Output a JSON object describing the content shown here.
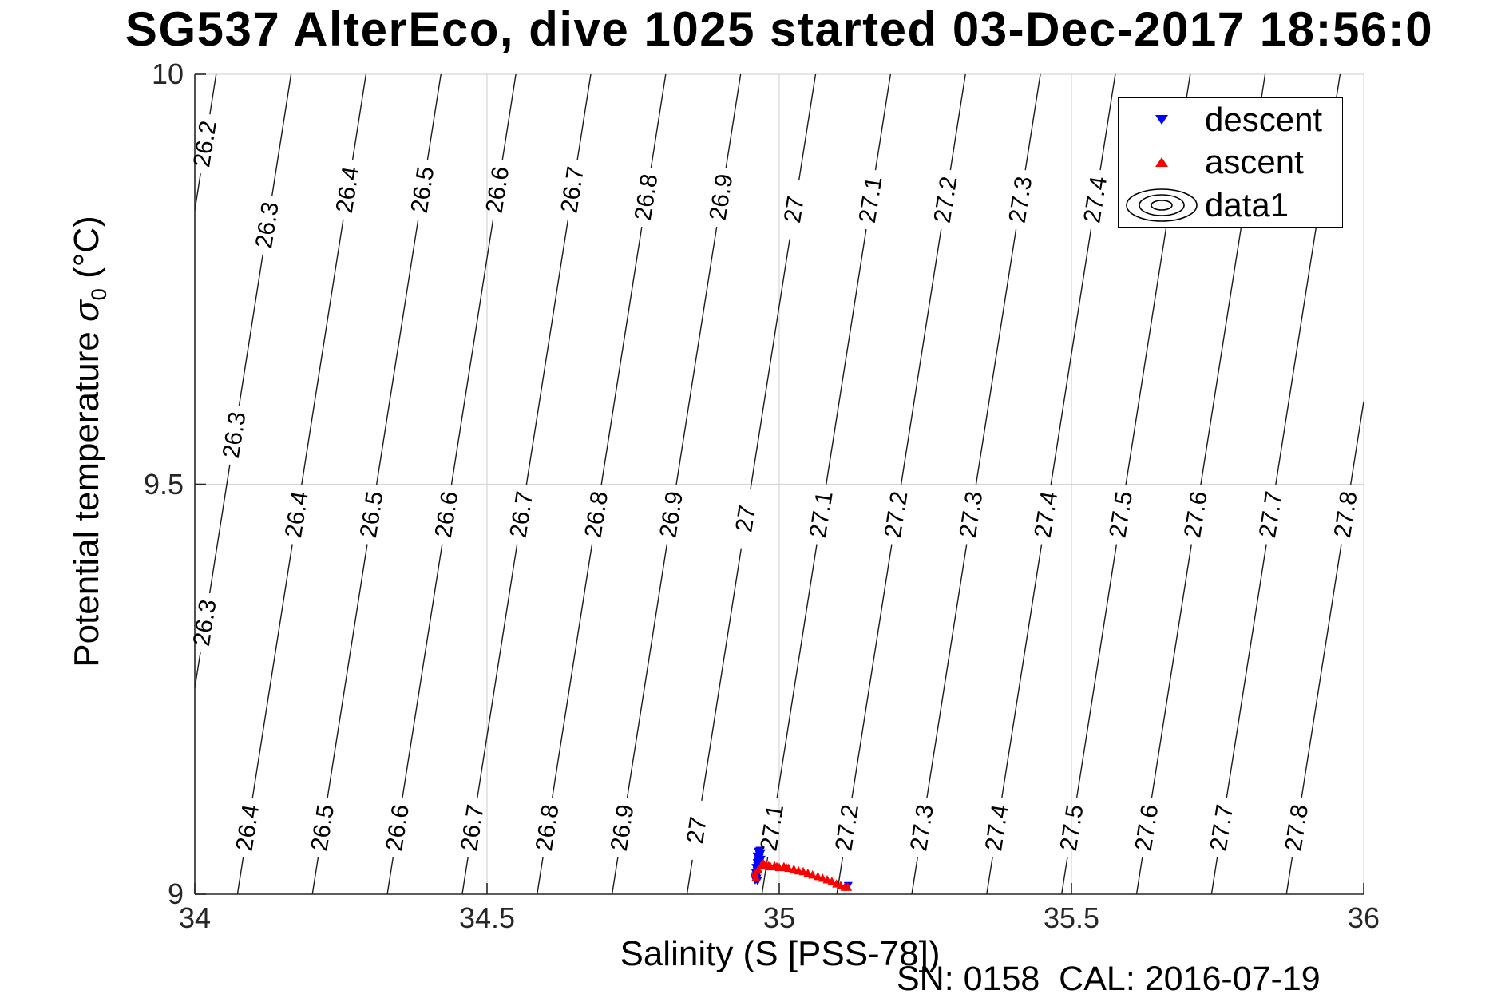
{
  "chart_data": {
    "type": "contour+scatter",
    "title": "SG537 AlterEco, dive 1025 started 03-Dec-2017 18:56:0",
    "xlabel": "Salinity (S [PSS-78])",
    "ylabel": "Potential temperature σ0 (°C)",
    "ylabel_parts": {
      "prefix": "Potential temperature ",
      "sigma": "σ",
      "subscript": "0",
      "suffix": " (°C)"
    },
    "annotation": "SN: 0158  CAL: 2016-07-19",
    "xlim": [
      34,
      36
    ],
    "ylim": [
      9,
      10
    ],
    "x_ticks": [
      {
        "v": 34,
        "label": "34"
      },
      {
        "v": 34.5,
        "label": "34.5"
      },
      {
        "v": 35,
        "label": "35"
      },
      {
        "v": 35.5,
        "label": "35.5"
      },
      {
        "v": 36,
        "label": "36"
      }
    ],
    "y_ticks": [
      {
        "v": 9,
        "label": "9"
      },
      {
        "v": 9.5,
        "label": "9.5"
      },
      {
        "v": 10,
        "label": "10"
      }
    ],
    "grid": true,
    "colors": {
      "descent": "#0000ff",
      "ascent": "#ff0000",
      "contour_line": "#1c1c1c",
      "contour_label": "#000000",
      "grid": "#d6d6d6",
      "axis": "#262626"
    },
    "contours": {
      "levels": [
        26.2,
        26.3,
        26.4,
        26.5,
        26.6,
        26.7,
        26.8,
        26.9,
        27,
        27.1,
        27.2,
        27.3,
        27.4,
        27.5,
        27.6,
        27.7,
        27.8
      ],
      "isopycnal_fit": {
        "level_ref": 26.4,
        "S_ref": 34.175,
        "T_ref": 9.464,
        "dSigma_dS": 0.78,
        "dS_dT": 0.22
      },
      "label_positions": [
        {
          "level": 26.2,
          "T": [
            9.915
          ]
        },
        {
          "level": 26.3,
          "T": [
            9.816,
            9.56,
            9.331
          ]
        },
        {
          "level": 26.4,
          "T": [
            9.859,
            9.463,
            9.081
          ]
        },
        {
          "level": 26.5,
          "T": [
            9.859,
            9.463,
            9.081
          ]
        },
        {
          "level": 26.6,
          "T": [
            9.859,
            9.463,
            9.081
          ]
        },
        {
          "level": 26.7,
          "T": [
            9.859,
            9.463,
            9.081
          ]
        },
        {
          "level": 26.8,
          "T": [
            9.85,
            9.463,
            9.081
          ]
        },
        {
          "level": 26.9,
          "T": [
            9.85,
            9.463,
            9.081
          ]
        },
        {
          "level": 27,
          "T": [
            9.835,
            9.458,
            9.078
          ]
        },
        {
          "level": 27.1,
          "T": [
            9.847,
            9.463,
            9.081
          ]
        },
        {
          "level": 27.2,
          "T": [
            9.847,
            9.463,
            9.081
          ]
        },
        {
          "level": 27.3,
          "T": [
            9.847,
            9.463,
            9.081
          ]
        },
        {
          "level": 27.4,
          "T": [
            9.847,
            9.463,
            9.081
          ]
        },
        {
          "level": 27.5,
          "T": [
            9.463,
            9.081
          ]
        },
        {
          "level": 27.6,
          "T": [
            9.463,
            9.081
          ]
        },
        {
          "level": 27.7,
          "T": [
            9.463,
            9.081
          ]
        },
        {
          "level": 27.8,
          "T": [
            9.463,
            9.081
          ]
        }
      ]
    },
    "legend": {
      "position": "top-right",
      "entries": [
        {
          "label": "descent",
          "marker": "triangle-down",
          "color": "#0000ff"
        },
        {
          "label": "ascent",
          "marker": "triangle-up",
          "color": "#ff0000"
        },
        {
          "label": "data1",
          "marker": "contour-rings",
          "color": "#000000"
        }
      ]
    },
    "series": [
      {
        "name": "descent",
        "marker": "triangle-down",
        "color": "#0000ff",
        "points": [
          [
            34.967,
            9.054
          ],
          [
            34.964,
            9.053
          ],
          [
            34.969,
            9.051
          ],
          [
            34.966,
            9.049
          ],
          [
            34.962,
            9.047
          ],
          [
            34.966,
            9.045
          ],
          [
            34.969,
            9.043
          ],
          [
            34.964,
            9.041
          ],
          [
            34.962,
            9.039
          ],
          [
            34.966,
            9.037
          ],
          [
            34.963,
            9.035
          ],
          [
            34.96,
            9.033
          ],
          [
            34.964,
            9.031
          ],
          [
            34.962,
            9.029
          ],
          [
            34.959,
            9.027
          ],
          [
            34.963,
            9.025
          ],
          [
            34.96,
            9.023
          ],
          [
            34.958,
            9.021
          ],
          [
            34.962,
            9.02
          ],
          [
            34.959,
            9.018
          ],
          [
            34.963,
            9.017
          ],
          [
            35.118,
            9.011
          ]
        ]
      },
      {
        "name": "ascent",
        "marker": "triangle-up",
        "color": "#ff0000",
        "points": [
          [
            34.96,
            9.02
          ],
          [
            34.958,
            9.024
          ],
          [
            34.964,
            9.029
          ],
          [
            34.969,
            9.034
          ],
          [
            34.973,
            9.037
          ],
          [
            34.978,
            9.035
          ],
          [
            34.982,
            9.034
          ],
          [
            34.985,
            9.033
          ],
          [
            34.992,
            9.034
          ],
          [
            34.996,
            9.033
          ],
          [
            35.0,
            9.032
          ],
          [
            35.008,
            9.033
          ],
          [
            35.012,
            9.032
          ],
          [
            35.016,
            9.031
          ],
          [
            35.025,
            9.03
          ],
          [
            35.033,
            9.028
          ],
          [
            35.041,
            9.027
          ],
          [
            35.049,
            9.025
          ],
          [
            35.057,
            9.023
          ],
          [
            35.066,
            9.021
          ],
          [
            35.074,
            9.019
          ],
          [
            35.082,
            9.017
          ],
          [
            35.09,
            9.015
          ],
          [
            35.098,
            9.012
          ],
          [
            35.105,
            9.01
          ],
          [
            35.112,
            9.008
          ],
          [
            35.117,
            9.008
          ]
        ]
      }
    ]
  }
}
